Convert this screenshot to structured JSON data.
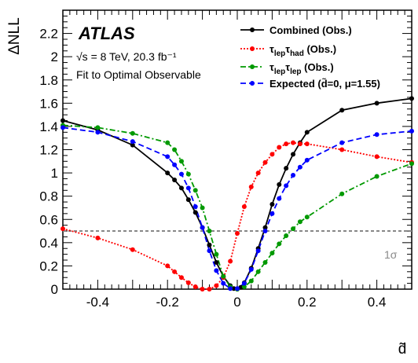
{
  "chart_data": {
    "type": "line",
    "title": "",
    "xlabel": "d̃",
    "ylabel": "ΔNLL",
    "xlim": [
      -0.5,
      0.5
    ],
    "ylim": [
      0,
      2.4
    ],
    "x_ticks": [
      -0.4,
      -0.2,
      0,
      0.2,
      0.4
    ],
    "x_tick_labels": [
      "-0.4",
      "-0.2",
      "0",
      "0.2",
      "0.4"
    ],
    "y_ticks": [
      0,
      0.2,
      0.4,
      0.6,
      0.8,
      1,
      1.2,
      1.4,
      1.6,
      1.8,
      2,
      2.2
    ],
    "y_tick_labels": [
      "0",
      "0.2",
      "0.4",
      "0.6",
      "0.8",
      "1",
      "1.2",
      "1.4",
      "1.6",
      "1.8",
      "2",
      "2.2"
    ],
    "grid": false,
    "legend_position": "top-right",
    "annotations": {
      "experiment": "ATLAS",
      "energy_line": "√s = 8 TeV, 20.3 fb⁻¹",
      "fit_line": "Fit to Optimal Observable",
      "sigma_label": "1σ"
    },
    "reference_lines": [
      {
        "y": 0.5,
        "label": "1σ",
        "color": "#888888",
        "style": "dashed"
      }
    ],
    "series": [
      {
        "name": "Combined (Obs.)",
        "color": "#000000",
        "line_style": "solid",
        "x": [
          -0.5,
          -0.4,
          -0.3,
          -0.2,
          -0.18,
          -0.16,
          -0.14,
          -0.12,
          -0.1,
          -0.08,
          -0.06,
          -0.04,
          -0.02,
          -0.01,
          0,
          0.01,
          0.02,
          0.04,
          0.06,
          0.08,
          0.1,
          0.12,
          0.14,
          0.16,
          0.18,
          0.2,
          0.3,
          0.4,
          0.5
        ],
        "y": [
          1.45,
          1.37,
          1.24,
          1.0,
          0.94,
          0.87,
          0.77,
          0.66,
          0.53,
          0.38,
          0.23,
          0.11,
          0.03,
          0.005,
          0.0,
          0.015,
          0.055,
          0.18,
          0.35,
          0.53,
          0.73,
          0.9,
          1.04,
          1.16,
          1.26,
          1.35,
          1.54,
          1.6,
          1.64
        ]
      },
      {
        "name": "τ_lep τ_had (Obs.)",
        "color": "#ff0000",
        "line_style": "dotted",
        "x": [
          -0.5,
          -0.4,
          -0.3,
          -0.2,
          -0.18,
          -0.16,
          -0.14,
          -0.12,
          -0.1,
          -0.08,
          -0.06,
          -0.04,
          -0.02,
          0,
          0.02,
          0.04,
          0.06,
          0.08,
          0.1,
          0.12,
          0.14,
          0.16,
          0.18,
          0.2,
          0.3,
          0.4,
          0.5
        ],
        "y": [
          0.52,
          0.44,
          0.34,
          0.2,
          0.15,
          0.1,
          0.055,
          0.02,
          0.0,
          0.0,
          0.03,
          0.1,
          0.24,
          0.48,
          0.71,
          0.88,
          1.0,
          1.09,
          1.16,
          1.22,
          1.25,
          1.26,
          1.25,
          1.25,
          1.2,
          1.14,
          1.09
        ]
      },
      {
        "name": "τ_lep τ_lep (Obs.)",
        "color": "#009900",
        "line_style": "dash-dot",
        "x": [
          -0.5,
          -0.4,
          -0.3,
          -0.2,
          -0.18,
          -0.16,
          -0.14,
          -0.12,
          -0.1,
          -0.08,
          -0.06,
          -0.04,
          -0.02,
          0,
          0.02,
          0.04,
          0.06,
          0.08,
          0.1,
          0.12,
          0.14,
          0.16,
          0.18,
          0.2,
          0.3,
          0.4,
          0.5
        ],
        "y": [
          1.41,
          1.39,
          1.34,
          1.26,
          1.2,
          1.1,
          0.99,
          0.85,
          0.7,
          0.5,
          0.3,
          0.11,
          0.02,
          0.0,
          0.02,
          0.07,
          0.15,
          0.23,
          0.31,
          0.39,
          0.46,
          0.52,
          0.58,
          0.62,
          0.82,
          0.97,
          1.08
        ]
      },
      {
        "name": "Expected (d̃=0, μ=1.55)",
        "color": "#0000ff",
        "line_style": "dashed",
        "x": [
          -0.5,
          -0.4,
          -0.3,
          -0.2,
          -0.18,
          -0.16,
          -0.14,
          -0.12,
          -0.1,
          -0.08,
          -0.06,
          -0.04,
          -0.02,
          0,
          0.02,
          0.04,
          0.06,
          0.08,
          0.1,
          0.12,
          0.14,
          0.16,
          0.18,
          0.2,
          0.3,
          0.4,
          0.5
        ],
        "y": [
          1.39,
          1.35,
          1.27,
          1.14,
          1.07,
          0.99,
          0.87,
          0.71,
          0.53,
          0.33,
          0.16,
          0.05,
          0.005,
          0.005,
          0.05,
          0.17,
          0.33,
          0.5,
          0.65,
          0.78,
          0.89,
          0.98,
          1.05,
          1.11,
          1.26,
          1.33,
          1.36
        ]
      }
    ],
    "legend": {
      "combined": "Combined (Obs.)",
      "lephad": {
        "tau1": "τ",
        "sub1": "lep",
        "tau2": "τ",
        "sub2": "had",
        "suffix": " (Obs.)"
      },
      "leplep": {
        "tau1": "τ",
        "sub1": "lep",
        "tau2": "τ",
        "sub2": "lep",
        "suffix": " (Obs.)"
      },
      "expected": "Expected (d̃=0, μ=1.55)"
    }
  }
}
